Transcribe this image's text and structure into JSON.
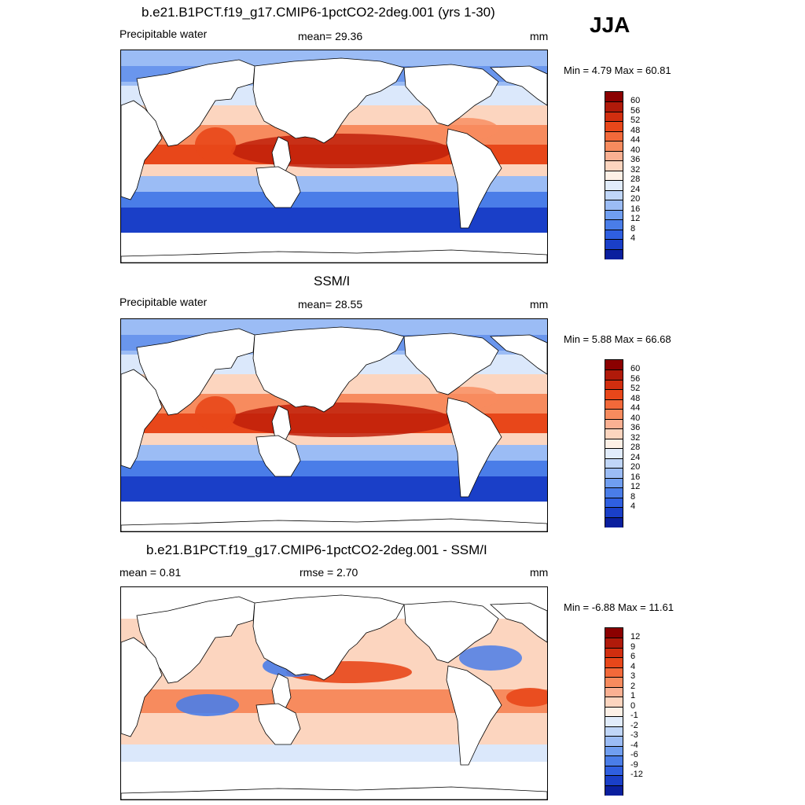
{
  "season": "JJA",
  "panels": [
    {
      "title": "b.e21.B1PCT.f19_g17.CMIP6-1pctCO2-2deg.001 (yrs 1-30)",
      "left_label": "Precipitable water",
      "stat1": "mean=  29.36",
      "stat2": "",
      "units": "mm",
      "minmax": "Min =   4.79 Max =  60.81",
      "kind": "field"
    },
    {
      "title": "SSM/I",
      "left_label": "Precipitable water",
      "stat1": "mean=  28.55",
      "stat2": "",
      "units": "mm",
      "minmax": "Min =   5.88 Max =  66.68",
      "kind": "field"
    },
    {
      "title": "b.e21.B1PCT.f19_g17.CMIP6-1pctCO2-2deg.001 - SSM/I",
      "left_label": "mean =   0.81",
      "stat1": "rmse =   2.70",
      "stat2": "",
      "units": "mm",
      "minmax": "Min =  -6.88 Max =  11.61",
      "kind": "diff"
    }
  ],
  "colorbars": {
    "field": {
      "labels": [
        "60",
        "56",
        "52",
        "48",
        "44",
        "40",
        "36",
        "32",
        "28",
        "24",
        "20",
        "16",
        "12",
        "8",
        "4"
      ],
      "colors": [
        "#8b0000",
        "#b01a0a",
        "#d12e0f",
        "#e8471a",
        "#f2693a",
        "#f78b5e",
        "#fab092",
        "#fcd5bf",
        "#fdf0e6",
        "#e1ecfb",
        "#c0d6f8",
        "#9bbcf5",
        "#709ef0",
        "#4a7de8",
        "#2f5fe0",
        "#1a3fc8",
        "#0a1f9e"
      ]
    },
    "diff": {
      "labels": [
        "12",
        "9",
        "6",
        "4",
        "3",
        "2",
        "1",
        "0",
        "-1",
        "-2",
        "-3",
        "-4",
        "-6",
        "-9",
        "-12"
      ],
      "colors": [
        "#8b0000",
        "#b01a0a",
        "#d12e0f",
        "#e8471a",
        "#f2693a",
        "#f78b5e",
        "#fab092",
        "#fcd5bf",
        "#fdf0e6",
        "#e1ecfb",
        "#c0d6f8",
        "#9bbcf5",
        "#709ef0",
        "#4a7de8",
        "#2f5fe0",
        "#1a3fc8",
        "#0a1f9e"
      ]
    }
  },
  "map_colors": {
    "red_dark": "#c0200a",
    "red": "#e8471a",
    "orange": "#f78b5e",
    "peach": "#fcd5bf",
    "pale_blue": "#dbe8fb",
    "light_blue": "#9bbcf5",
    "blue": "#4a7de8",
    "dark_blue": "#1a3fc8",
    "land": "#ffffff",
    "coast": "#000000"
  }
}
